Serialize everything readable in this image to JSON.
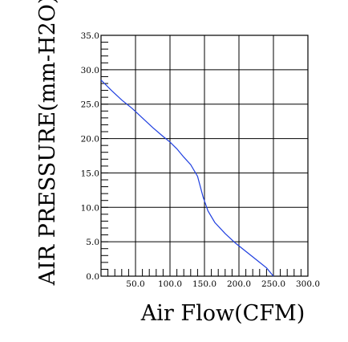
{
  "chart_data": {
    "type": "line",
    "title": "",
    "xlabel": "Air Flow(CFM)",
    "ylabel": "AIR PRESSURE(mm-H2O)",
    "xlim": [
      0,
      300
    ],
    "ylim": [
      0,
      35
    ],
    "x_ticks": [
      50,
      100,
      150,
      200,
      250,
      300
    ],
    "x_tick_labels": [
      "50.0",
      "100.0",
      "150.0",
      "200.0",
      "250.0",
      "300.0"
    ],
    "y_ticks": [
      0,
      5,
      10,
      15,
      20,
      25,
      30,
      35
    ],
    "y_tick_labels": [
      "0.0",
      "5.0",
      "10.0",
      "15.0",
      "20.0",
      "25.0",
      "30.0",
      "35.0"
    ],
    "grid": true,
    "legend": "none",
    "series": [
      {
        "color": "#1f3fe0",
        "points": [
          [
            0,
            28.5
          ],
          [
            15,
            27.0
          ],
          [
            30,
            25.6
          ],
          [
            45,
            24.4
          ],
          [
            60,
            23.0
          ],
          [
            75,
            21.6
          ],
          [
            90,
            20.3
          ],
          [
            100,
            19.5
          ],
          [
            110,
            18.5
          ],
          [
            120,
            17.3
          ],
          [
            130,
            16.2
          ],
          [
            140,
            14.5
          ],
          [
            148,
            11.5
          ],
          [
            155,
            9.5
          ],
          [
            165,
            7.8
          ],
          [
            180,
            6.2
          ],
          [
            195,
            4.8
          ],
          [
            210,
            3.6
          ],
          [
            225,
            2.4
          ],
          [
            240,
            1.2
          ],
          [
            250,
            0.0
          ]
        ]
      }
    ]
  }
}
